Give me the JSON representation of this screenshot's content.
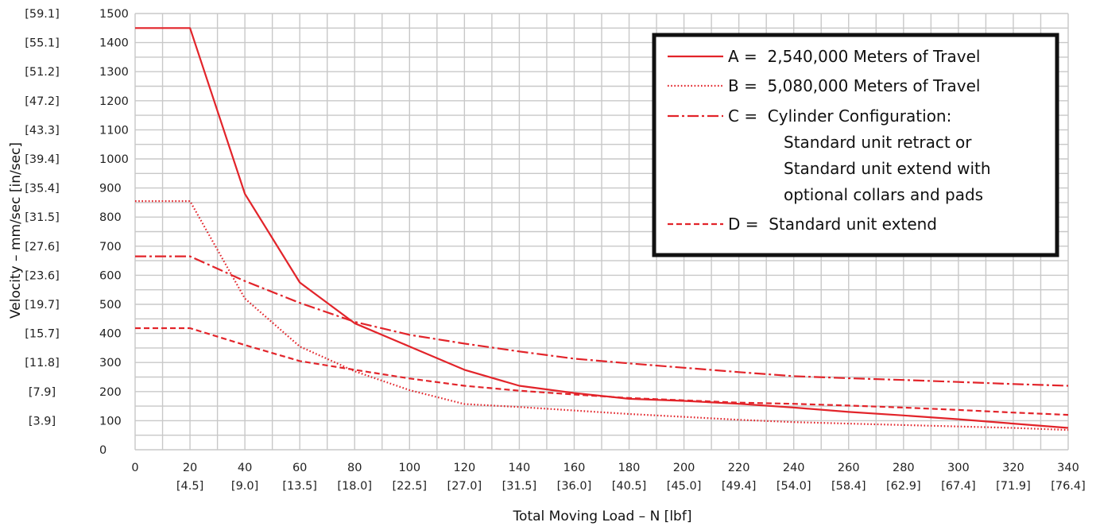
{
  "chart_data": {
    "type": "line",
    "xlabel": "Total Moving Load – N [lbf]",
    "ylabel": "Velocity – mm/sec [in/sec]",
    "xlim": [
      0,
      340
    ],
    "ylim": [
      0,
      1500
    ],
    "grid": true,
    "legend_position": "top-right",
    "x_ticks": [
      {
        "value": 0,
        "label": "0",
        "sub": ""
      },
      {
        "value": 20,
        "label": "20",
        "sub": "[4.5]"
      },
      {
        "value": 40,
        "label": "40",
        "sub": "[9.0]"
      },
      {
        "value": 60,
        "label": "60",
        "sub": "[13.5]"
      },
      {
        "value": 80,
        "label": "80",
        "sub": "[18.0]"
      },
      {
        "value": 100,
        "label": "100",
        "sub": "[22.5]"
      },
      {
        "value": 120,
        "label": "120",
        "sub": "[27.0]"
      },
      {
        "value": 140,
        "label": "140",
        "sub": "[31.5]"
      },
      {
        "value": 160,
        "label": "160",
        "sub": "[36.0]"
      },
      {
        "value": 180,
        "label": "180",
        "sub": "[40.5]"
      },
      {
        "value": 200,
        "label": "200",
        "sub": "[45.0]"
      },
      {
        "value": 220,
        "label": "220",
        "sub": "[49.4]"
      },
      {
        "value": 240,
        "label": "240",
        "sub": "[54.0]"
      },
      {
        "value": 260,
        "label": "260",
        "sub": "[58.4]"
      },
      {
        "value": 280,
        "label": "280",
        "sub": "[62.9]"
      },
      {
        "value": 300,
        "label": "300",
        "sub": "[67.4]"
      },
      {
        "value": 320,
        "label": "320",
        "sub": "[71.9]"
      },
      {
        "value": 340,
        "label": "340",
        "sub": "[76.4]"
      }
    ],
    "y_ticks": [
      {
        "value": 0,
        "label": "0",
        "alt": ""
      },
      {
        "value": 100,
        "label": "100",
        "alt": "[3.9]"
      },
      {
        "value": 200,
        "label": "200",
        "alt": "[7.9]"
      },
      {
        "value": 300,
        "label": "300",
        "alt": "[11.8]"
      },
      {
        "value": 400,
        "label": "400",
        "alt": "[15.7]"
      },
      {
        "value": 500,
        "label": "500",
        "alt": "[19.7]"
      },
      {
        "value": 600,
        "label": "600",
        "alt": "[23.6]"
      },
      {
        "value": 700,
        "label": "700",
        "alt": "[27.6]"
      },
      {
        "value": 800,
        "label": "800",
        "alt": "[31.5]"
      },
      {
        "value": 900,
        "label": "900",
        "alt": "[35.4]"
      },
      {
        "value": 1000,
        "label": "1000",
        "alt": "[39.4]"
      },
      {
        "value": 1100,
        "label": "1100",
        "alt": "[43.3]"
      },
      {
        "value": 1200,
        "label": "1200",
        "alt": "[47.2]"
      },
      {
        "value": 1300,
        "label": "1300",
        "alt": "[51.2]"
      },
      {
        "value": 1400,
        "label": "1400",
        "alt": "[55.1]"
      },
      {
        "value": 1500,
        "label": "1500",
        "alt": "[59.1]"
      }
    ],
    "series": [
      {
        "key": "A",
        "dash": "solid",
        "legend_lines": [
          "A =  2,540,000 Meters of Travel"
        ],
        "points": [
          [
            0,
            1450
          ],
          [
            20,
            1450
          ],
          [
            40,
            880
          ],
          [
            60,
            575
          ],
          [
            80,
            435
          ],
          [
            100,
            355
          ],
          [
            120,
            275
          ],
          [
            140,
            220
          ],
          [
            160,
            195
          ],
          [
            180,
            175
          ],
          [
            200,
            168
          ],
          [
            220,
            158
          ],
          [
            240,
            145
          ],
          [
            260,
            130
          ],
          [
            280,
            118
          ],
          [
            300,
            105
          ],
          [
            320,
            90
          ],
          [
            340,
            75
          ]
        ]
      },
      {
        "key": "B",
        "dash": "dotted",
        "legend_lines": [
          "B =  5,080,000 Meters of Travel"
        ],
        "points": [
          [
            0,
            855
          ],
          [
            20,
            855
          ],
          [
            40,
            520
          ],
          [
            60,
            355
          ],
          [
            80,
            270
          ],
          [
            100,
            205
          ],
          [
            120,
            157
          ],
          [
            140,
            147
          ],
          [
            160,
            135
          ],
          [
            180,
            123
          ],
          [
            200,
            113
          ],
          [
            220,
            103
          ],
          [
            240,
            95
          ],
          [
            260,
            90
          ],
          [
            280,
            85
          ],
          [
            300,
            80
          ],
          [
            320,
            75
          ],
          [
            340,
            68
          ]
        ]
      },
      {
        "key": "C",
        "dash": "dashdot",
        "legend_lines": [
          "C =  Cylinder Configuration:",
          "Standard unit retract or",
          "Standard unit extend with",
          "optional collars and pads"
        ],
        "points": [
          [
            0,
            665
          ],
          [
            20,
            665
          ],
          [
            40,
            580
          ],
          [
            60,
            505
          ],
          [
            80,
            440
          ],
          [
            100,
            395
          ],
          [
            120,
            365
          ],
          [
            140,
            338
          ],
          [
            160,
            313
          ],
          [
            180,
            297
          ],
          [
            200,
            282
          ],
          [
            220,
            267
          ],
          [
            240,
            253
          ],
          [
            260,
            246
          ],
          [
            280,
            240
          ],
          [
            300,
            233
          ],
          [
            320,
            226
          ],
          [
            340,
            220
          ]
        ]
      },
      {
        "key": "D",
        "dash": "dashed",
        "legend_lines": [
          "D =  Standard unit extend"
        ],
        "points": [
          [
            0,
            418
          ],
          [
            20,
            418
          ],
          [
            40,
            360
          ],
          [
            60,
            305
          ],
          [
            80,
            275
          ],
          [
            100,
            245
          ],
          [
            120,
            220
          ],
          [
            140,
            203
          ],
          [
            160,
            190
          ],
          [
            180,
            178
          ],
          [
            200,
            170
          ],
          [
            220,
            162
          ],
          [
            240,
            158
          ],
          [
            260,
            152
          ],
          [
            280,
            145
          ],
          [
            300,
            137
          ],
          [
            320,
            128
          ],
          [
            340,
            120
          ]
        ]
      }
    ]
  },
  "colors": {
    "series": "#e2242a",
    "grid": "#c8c8c8",
    "legend_border": "#111111",
    "text": "#222222"
  }
}
